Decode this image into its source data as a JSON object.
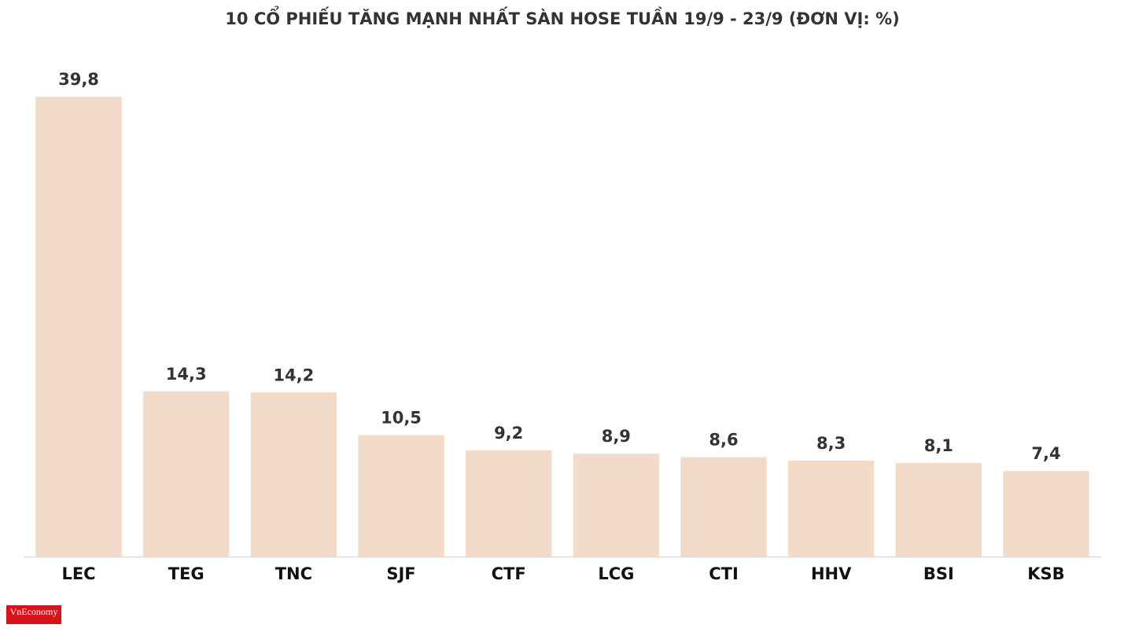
{
  "chart_data": {
    "type": "bar",
    "title": "10 CỔ PHIẾU TĂNG MẠNH NHẤT SÀN HOSE TUẦN 19/9 - 23/9 (ĐƠN VỊ: %)",
    "categories": [
      "LEC",
      "TEG",
      "TNC",
      "SJF",
      "CTF",
      "LCG",
      "CTI",
      "HHV",
      "BSI",
      "KSB"
    ],
    "values": [
      39.8,
      14.3,
      14.2,
      10.5,
      9.2,
      8.9,
      8.6,
      8.3,
      8.1,
      7.4
    ],
    "value_labels": [
      "39,8",
      "14,3",
      "14,2",
      "10,5",
      "9,2",
      "8,9",
      "8,6",
      "8,3",
      "8,1",
      "7,4"
    ],
    "color": "#f2dbc9"
  },
  "logo": "VnEconomy"
}
